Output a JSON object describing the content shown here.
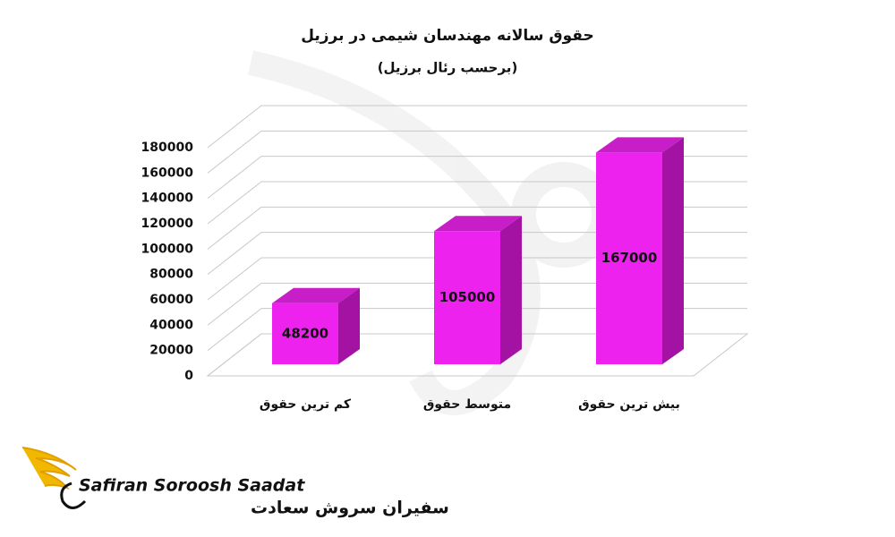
{
  "chart_data": {
    "type": "bar3d",
    "title": "حقوق سالانه مهندسان شیمی در برزیل",
    "subtitle": "(برحسب رئال برزیل)",
    "categories": [
      "کم ترین حقوق",
      "متوسط حقوق",
      "بیش ترین حقوق"
    ],
    "values": [
      48200,
      105000,
      167000
    ],
    "color": "#ee22ee",
    "ylim": [
      0,
      180000
    ],
    "yticks": [
      0,
      20000,
      40000,
      60000,
      80000,
      100000,
      120000,
      140000,
      160000,
      180000
    ],
    "grid": true
  },
  "logo": {
    "latin": "Safiran Soroosh Saadat",
    "persian": "سفیران سروش سعادت"
  }
}
